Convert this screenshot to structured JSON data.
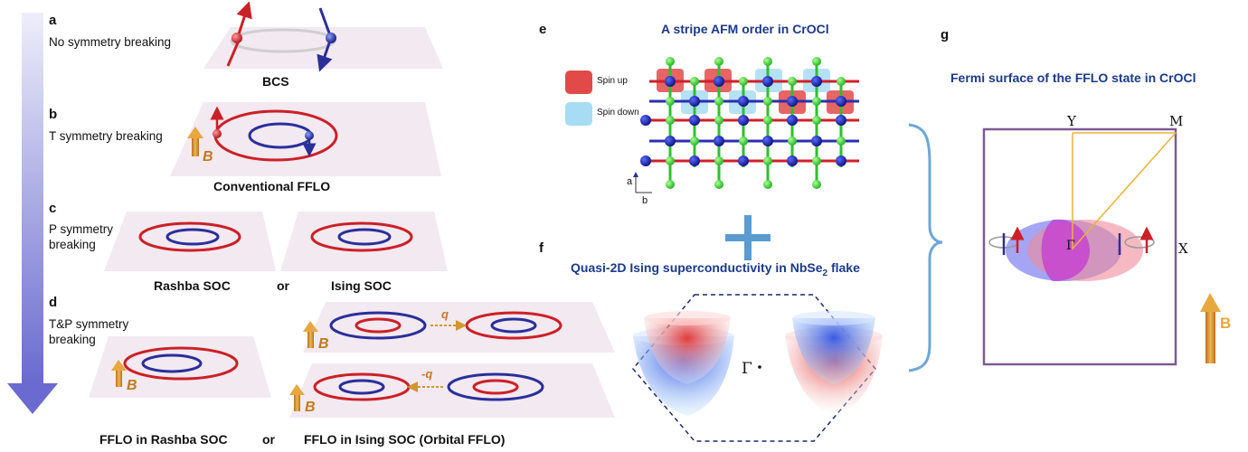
{
  "panel_a": {
    "label": "a",
    "desc": "No symmetry breaking",
    "caption": "BCS"
  },
  "panel_b": {
    "label": "b",
    "desc": "T symmetry breaking",
    "caption": "Conventional FFLO",
    "field": "B"
  },
  "panel_c": {
    "label": "c",
    "desc_line1": "P symmetry",
    "desc_line2": "breaking",
    "caption_left": "Rashba SOC",
    "or": "or",
    "caption_right": "Ising SOC"
  },
  "panel_d": {
    "label": "d",
    "desc_line1": "T&P symmetry",
    "desc_line2": "breaking",
    "field": "B",
    "q_top": "q",
    "q_bottom": "-q",
    "caption_left": "FFLO in Rashba SOC",
    "or": "or",
    "caption_right": "FFLO in Ising SOC (Orbital FFLO)"
  },
  "panel_e": {
    "label": "e",
    "title": "A stripe AFM order in CrOCl",
    "legend_up": "Spin up",
    "legend_down": "Spin down",
    "axis_a": "a",
    "axis_b": "b"
  },
  "panel_f": {
    "label": "f",
    "title_main": "Quasi-2D Ising superconductivity in NbSe",
    "title_sub": "2",
    "title_tail": " flake",
    "gamma": "Γ"
  },
  "panel_g": {
    "label": "g",
    "title": "Fermi surface of the FFLO state in CrOCl",
    "Y": "Y",
    "M": "M",
    "X": "X",
    "gamma": "Γ",
    "field": "B"
  },
  "colors": {
    "ring_red": "#cc2027",
    "ring_blue": "#2a2f9a",
    "title_blue": "#1b3a8c",
    "arrow_orange": "#d4952c",
    "box_purple": "#7e5a93",
    "bracket": "#6ea6d8"
  }
}
